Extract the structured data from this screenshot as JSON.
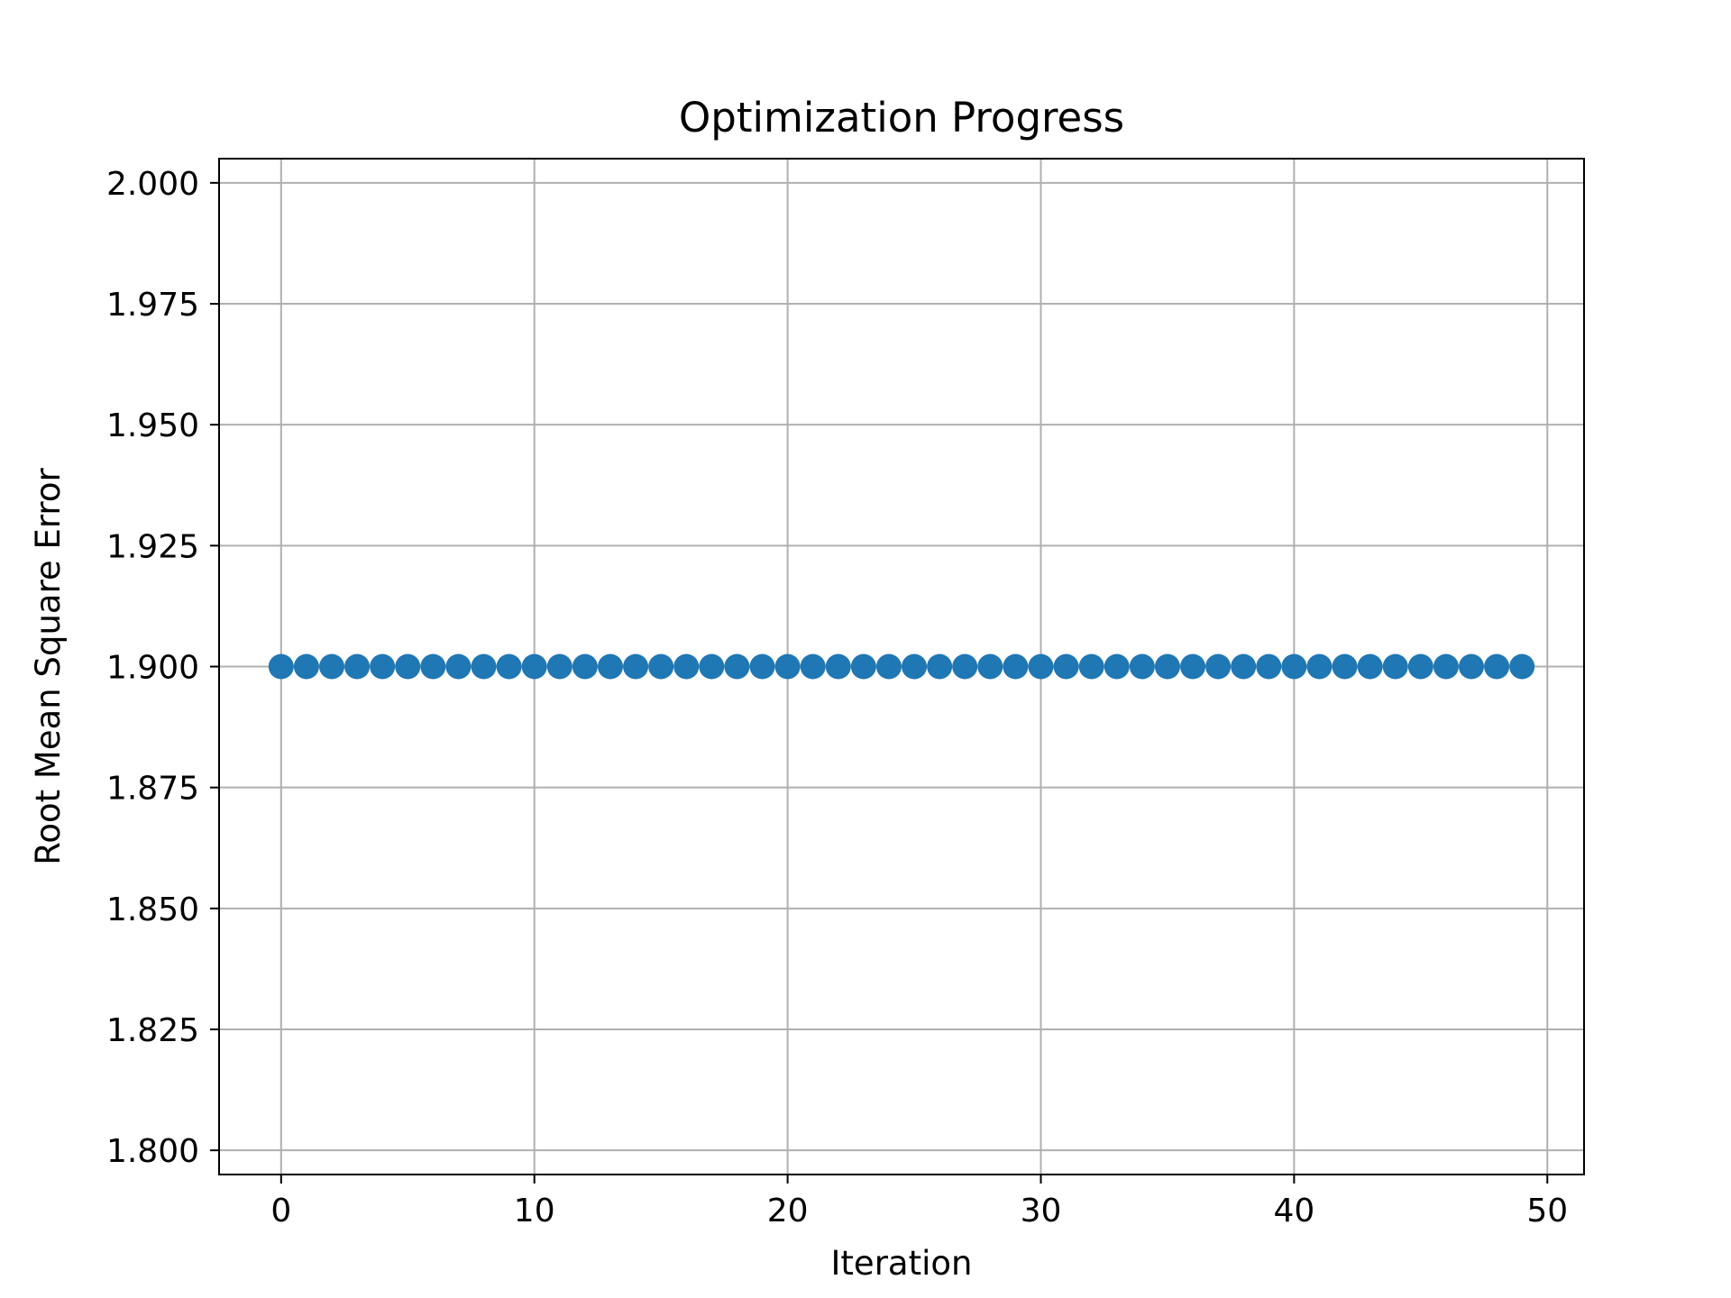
{
  "chart_data": {
    "type": "scatter",
    "title": "Optimization Progress",
    "xlabel": "Iteration",
    "ylabel": "Root Mean Square Error",
    "xlim": [
      -2.45,
      51.45
    ],
    "ylim": [
      1.795,
      2.005
    ],
    "x_ticks": [
      0,
      10,
      20,
      30,
      40,
      50
    ],
    "x_tick_labels": [
      "0",
      "10",
      "20",
      "30",
      "40",
      "50"
    ],
    "y_ticks": [
      1.8,
      1.825,
      1.85,
      1.875,
      1.9,
      1.925,
      1.95,
      1.975,
      2.0
    ],
    "y_tick_labels": [
      "1.800",
      "1.825",
      "1.850",
      "1.875",
      "1.900",
      "1.925",
      "1.950",
      "1.975",
      "2.000"
    ],
    "grid": true,
    "legend": "none",
    "marker": "circle",
    "colors": {
      "series": "#1f77b4",
      "grid": "#b0b0b0",
      "axes": "#000000",
      "background": "#ffffff"
    },
    "series": [
      {
        "x": [
          0,
          1,
          2,
          3,
          4,
          5,
          6,
          7,
          8,
          9,
          10,
          11,
          12,
          13,
          14,
          15,
          16,
          17,
          18,
          19,
          20,
          21,
          22,
          23,
          24,
          25,
          26,
          27,
          28,
          29,
          30,
          31,
          32,
          33,
          34,
          35,
          36,
          37,
          38,
          39,
          40,
          41,
          42,
          43,
          44,
          45,
          46,
          47,
          48,
          49
        ],
        "y": [
          1.9,
          1.9,
          1.9,
          1.9,
          1.9,
          1.9,
          1.9,
          1.9,
          1.9,
          1.9,
          1.9,
          1.9,
          1.9,
          1.9,
          1.9,
          1.9,
          1.9,
          1.9,
          1.9,
          1.9,
          1.9,
          1.9,
          1.9,
          1.9,
          1.9,
          1.9,
          1.9,
          1.9,
          1.9,
          1.9,
          1.9,
          1.9,
          1.9,
          1.9,
          1.9,
          1.9,
          1.9,
          1.9,
          1.9,
          1.9,
          1.9,
          1.9,
          1.9,
          1.9,
          1.9,
          1.9,
          1.9,
          1.9,
          1.9,
          1.9
        ]
      }
    ]
  }
}
